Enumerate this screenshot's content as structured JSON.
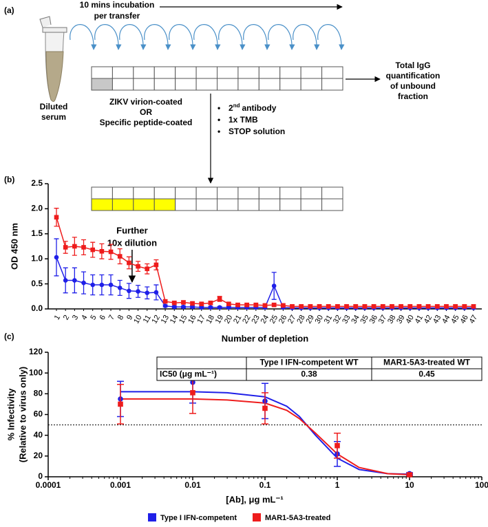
{
  "panel_labels": [
    "(a)",
    "(b)",
    "(c)"
  ],
  "diagram": {
    "incubation": [
      "10 mins incubation",
      "per transfer"
    ],
    "tube": [
      "Diluted",
      "serum"
    ],
    "coating": [
      "ZIKV virion-coated",
      "OR",
      "Specific peptide-coated"
    ],
    "output": [
      "Total IgG",
      "quantification",
      "of unbound",
      "fraction"
    ],
    "steps": [
      [
        "2",
        "nd",
        "antibody"
      ],
      "1x TMB",
      "STOP solution"
    ]
  },
  "chart_data": [
    {
      "type": "line",
      "ylabel": "OD 450 nm",
      "xlabel": "Number of depletion",
      "annotation": [
        "Further",
        "10x dilution"
      ],
      "categories": [
        1,
        2,
        3,
        4,
        5,
        6,
        7,
        8,
        9,
        10,
        11,
        12,
        13,
        14,
        15,
        16,
        17,
        18,
        19,
        20,
        21,
        22,
        23,
        24,
        25,
        26,
        27,
        28,
        29,
        30,
        31,
        32,
        33,
        34,
        35,
        36,
        37,
        38,
        39,
        40,
        41,
        42,
        43,
        44,
        45,
        46,
        47
      ],
      "ylim": [
        0,
        2.5
      ],
      "yticks": [
        {
          "value": 0,
          "label": "0.0"
        },
        0.5,
        {
          "value": 1,
          "label": "1.0"
        },
        1.5,
        {
          "value": 2,
          "label": "2.0"
        },
        2.5
      ],
      "series": [
        {
          "color": "#1f1fe8",
          "marker": "circle",
          "values": [
            1.03,
            0.57,
            0.57,
            0.52,
            0.48,
            0.48,
            0.48,
            0.42,
            0.36,
            0.35,
            0.32,
            0.33,
            0.06,
            0.04,
            0.04,
            0.04,
            0.03,
            0.03,
            0.03,
            0.03,
            0.03,
            0.03,
            0.03,
            0.03,
            0.46,
            0.03,
            0.02,
            0.02,
            0.02,
            0.02,
            0.02,
            0.02,
            0.02,
            0.02,
            0.02,
            0.02,
            0.02,
            0.02,
            0.02,
            0.02,
            0.02,
            0.02,
            0.02,
            0.02,
            0.02,
            0.02,
            0.02
          ],
          "errors": [
            0.37,
            0.25,
            0.25,
            0.22,
            0.2,
            0.2,
            0.2,
            0.15,
            0.15,
            0.12,
            0.12,
            0.15,
            0.02,
            0.02,
            0.02,
            0.02,
            0.02,
            0.02,
            0.02,
            0.02,
            0.02,
            0.02,
            0.02,
            0.02,
            0.27,
            0.02,
            0.02,
            0.02,
            0.02,
            0.02,
            0.02,
            0.02,
            0.02,
            0.02,
            0.02,
            0.02,
            0.02,
            0.02,
            0.02,
            0.02,
            0.02,
            0.02,
            0.02,
            0.02,
            0.02,
            0.02,
            0.02
          ]
        },
        {
          "color": "#ee1c1c",
          "marker": "square",
          "values": [
            1.83,
            1.23,
            1.25,
            1.23,
            1.18,
            1.15,
            1.14,
            1.05,
            0.92,
            0.85,
            0.8,
            0.88,
            0.15,
            0.12,
            0.13,
            0.11,
            0.1,
            0.12,
            0.2,
            0.1,
            0.08,
            0.08,
            0.08,
            0.07,
            0.08,
            0.07,
            0.05,
            0.05,
            0.05,
            0.05,
            0.05,
            0.05,
            0.05,
            0.05,
            0.05,
            0.05,
            0.05,
            0.05,
            0.05,
            0.05,
            0.05,
            0.05,
            0.05,
            0.05,
            0.05,
            0.05,
            0.05
          ],
          "errors": [
            0.18,
            0.12,
            0.18,
            0.15,
            0.15,
            0.15,
            0.15,
            0.15,
            0.12,
            0.1,
            0.1,
            0.1,
            0.03,
            0.03,
            0.03,
            0.03,
            0.03,
            0.03,
            0.05,
            0.03,
            0.03,
            0.03,
            0.03,
            0.03,
            0.03,
            0.03,
            0.03,
            0.03,
            0.03,
            0.03,
            0.03,
            0.03,
            0.03,
            0.03,
            0.03,
            0.03,
            0.03,
            0.03,
            0.03,
            0.03,
            0.03,
            0.03,
            0.03,
            0.03,
            0.03,
            0.03,
            0.03
          ]
        }
      ]
    },
    {
      "type": "scatter",
      "ylabel": [
        "% Infectivity",
        "(Relative to virus only)"
      ],
      "xlabel": "[Ab], μg mL⁻¹",
      "xscale": "log",
      "xlim": [
        0.0001,
        100
      ],
      "xticks": [
        0.0001,
        0.001,
        0.01,
        0.1,
        1,
        10,
        100
      ],
      "ylim": [
        0,
        120
      ],
      "yticks": [
        0,
        20,
        40,
        60,
        80,
        100,
        120
      ],
      "reference_line": 50,
      "legend": "bottom",
      "x": [
        0.001,
        0.01,
        0.1,
        1,
        10
      ],
      "series": [
        {
          "name": "Type I IFN-competent",
          "color": "#1f1fe8",
          "marker": "circle",
          "values": [
            75,
            91,
            73,
            22,
            3
          ],
          "errors": [
            17,
            20,
            17,
            12,
            1
          ],
          "curve": {
            "x": [
              0.001,
              0.01,
              0.03,
              0.1,
              0.2,
              0.3,
              0.5,
              1,
              2,
              5,
              10
            ],
            "values": [
              82,
              82,
              81,
              77,
              68,
              58,
              40,
              18,
              7,
              3,
              2.5
            ]
          }
        },
        {
          "name": "MAR1-5A3-treated",
          "color": "#ee1c1c",
          "marker": "square",
          "values": [
            70,
            81,
            66,
            30,
            2
          ],
          "errors": [
            19,
            20,
            15,
            12,
            1
          ],
          "curve": {
            "x": [
              0.001,
              0.01,
              0.03,
              0.1,
              0.2,
              0.3,
              0.5,
              1,
              2,
              5,
              10
            ],
            "values": [
              75,
              75,
              74,
              71,
              64,
              56,
              42,
              22,
              9,
              3,
              2
            ]
          }
        }
      ],
      "table": {
        "columns": [
          "Type I IFN-competent WT",
          "MAR1-5A3-treated WT"
        ],
        "rows": [
          {
            "label": "IC50 (μg mL⁻¹)",
            "values": [
              0.38,
              0.45
            ]
          }
        ]
      }
    }
  ]
}
